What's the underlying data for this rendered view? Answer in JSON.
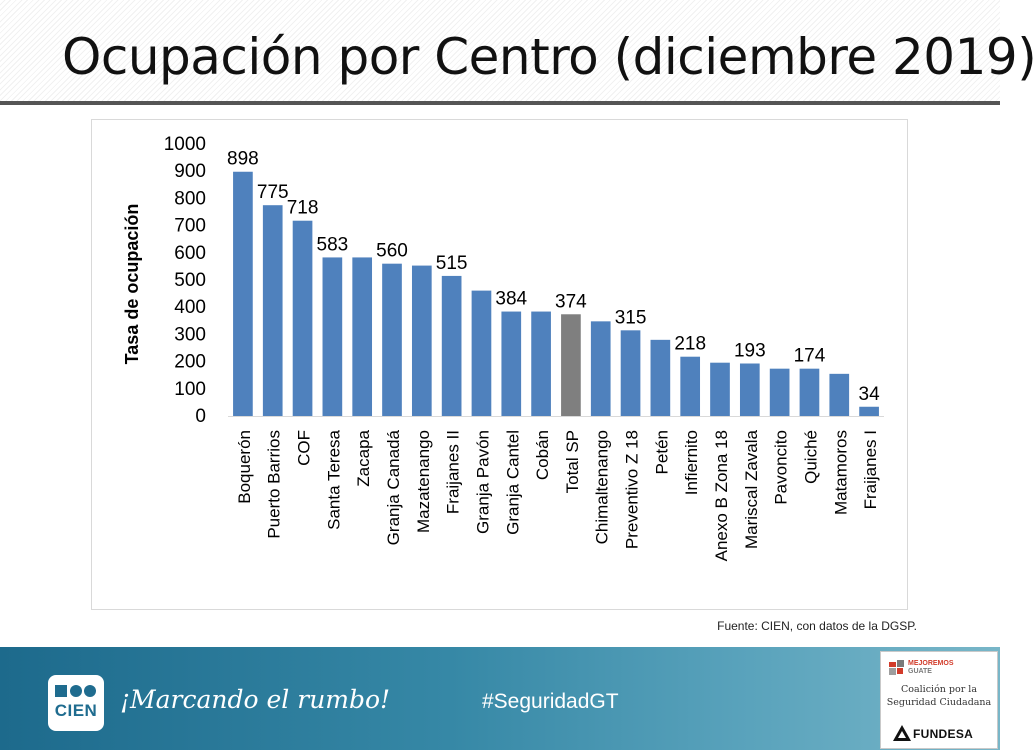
{
  "slide": {
    "title": "Ocupación por Centro (diciembre 2019)",
    "source": "Fuente: CIEN, con datos de la DGSP."
  },
  "footer": {
    "logo_text": "CIEN",
    "slogan": "¡Marcando el rumbo!",
    "hashtag": "#SeguridadGT",
    "partner_mejoremos_line1": "MEJOREMOS",
    "partner_mejoremos_line2": "GUATE",
    "partner_coalicion_line1": "Coalición por la",
    "partner_coalicion_line2": "Seguridad Ciudadana",
    "partner_fundesa": "FUNDESA"
  },
  "colors": {
    "bar": "#4f81bd",
    "bar_highlight": "#7f7f7f"
  },
  "chart_data": {
    "type": "bar",
    "title": "",
    "xlabel": "",
    "ylabel": "Tasa de ocupación",
    "ylim": [
      0,
      1000
    ],
    "yticks": [
      "0",
      "100",
      "200",
      "300",
      "400",
      "500",
      "600",
      "700",
      "800",
      "900",
      "1000"
    ],
    "grid": false,
    "legend": false,
    "categories": [
      "Boquerón",
      "Puerto Barrios",
      "COF",
      "Santa Teresa",
      "Zacapa",
      "Granja Canadá",
      "Mazatenango",
      "Fraijanes II",
      "Granja Pavón",
      "Granja Cantel",
      "Cobán",
      "Total SP",
      "Chimaltenango",
      "Preventivo Z 18",
      "Petén",
      "Infiernito",
      "Anexo B Zona 18",
      "Mariscal Zavala",
      "Pavoncito",
      "Quiché",
      "Matamoros",
      "Fraijanes I"
    ],
    "values": [
      898,
      775,
      718,
      583,
      583,
      560,
      553,
      515,
      461,
      384,
      384,
      374,
      348,
      315,
      280,
      218,
      196,
      193,
      174,
      174,
      155,
      34
    ],
    "data_labels": [
      "898",
      "775",
      "718",
      "583",
      "",
      "560",
      "",
      "515",
      "",
      "384",
      "",
      "374",
      "",
      "315",
      "",
      "218",
      "",
      "193",
      "",
      "174",
      "",
      "34"
    ],
    "highlight_index": 11
  }
}
